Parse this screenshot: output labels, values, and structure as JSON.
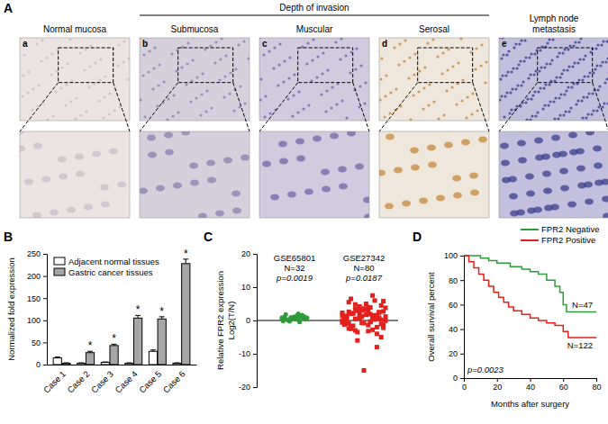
{
  "panel_labels": [
    "A",
    "B",
    "C",
    "D"
  ],
  "panel_a": {
    "group_title": "Depth of invasion",
    "panels": [
      {
        "letter": "a",
        "title": "Normal mucosa"
      },
      {
        "letter": "b",
        "title": "Submucosa"
      },
      {
        "letter": "c",
        "title": "Muscular"
      },
      {
        "letter": "d",
        "title": "Serosal"
      },
      {
        "letter": "e",
        "title": "Lymph node metastasis"
      }
    ]
  },
  "chart_data": [
    {
      "type": "bar",
      "y_label": "Normalized fold expression",
      "categories": [
        "Case 1",
        "Case 2",
        "Case 3",
        "Case 4",
        "Case 5",
        "Case 6"
      ],
      "series": [
        {
          "name": "Adjacent normal tissues",
          "color": "#ffffff",
          "values": [
            15,
            3,
            5,
            3,
            30,
            3
          ],
          "errors": [
            2,
            1,
            1,
            1,
            3,
            1
          ]
        },
        {
          "name": "Gastric cancer tissues",
          "color": "#a6a6a6",
          "values": [
            3,
            27,
            43,
            105,
            103,
            228
          ],
          "errors": [
            1,
            3,
            3,
            6,
            5,
            10
          ]
        }
      ],
      "significance": [
        null,
        "*",
        "*",
        "*",
        "*",
        "*"
      ],
      "ylim": [
        0,
        250
      ],
      "yticks": [
        0,
        50,
        100,
        150,
        200,
        250
      ],
      "legend": "upper left"
    },
    {
      "type": "scatter",
      "y_label": "Relative FPR2 expression",
      "y_sublabel": "Log2(T/N)",
      "series": [
        {
          "name": "GSE65801",
          "n_label": "N=32",
          "p_label": "p=0.0019",
          "color": "#2e9b3a",
          "marker": "circle",
          "values": [
            0.5,
            0.8,
            1.2,
            0.3,
            -0.2,
            0.6,
            1.5,
            0.9,
            0.4,
            1.1,
            0.2,
            0.7,
            1.8,
            0.5,
            -0.5,
            1.0,
            0.3,
            0.8,
            1.3,
            0.6,
            0.1,
            0.9,
            1.6,
            0.4,
            -0.3,
            0.7,
            1.2,
            0.5,
            0.2,
            1.0,
            0.6,
            2.0
          ]
        },
        {
          "name": "GSE27342",
          "n_label": "N=80",
          "p_label": "p=0.0187",
          "color": "#e3201c",
          "marker": "square",
          "values": [
            1.5,
            -2.0,
            3.2,
            0.5,
            -1.0,
            2.5,
            4.0,
            -3.5,
            1.0,
            0.2,
            -0.5,
            2.0,
            5.5,
            -1.5,
            0.8,
            3.0,
            -2.5,
            1.2,
            6.0,
            -0.8,
            2.2,
            0,
            -4.0,
            1.8,
            3.5,
            -1.2,
            0.6,
            2.8,
            -6.0,
            1.4,
            4.5,
            -0.3,
            0.9,
            2.6,
            -2.2,
            7.5,
            1.1,
            -1.8,
            3.8,
            0.4,
            -15.0,
            2.1,
            -0.6,
            1.6,
            5.0,
            -3.0,
            0.7,
            2.4,
            -1.4,
            3.3,
            0.1,
            -5.0,
            1.9,
            4.2,
            -0.9,
            2.7,
            -2.8,
            1.3,
            6.5,
            -0.1,
            0.3,
            3.6,
            -1.6,
            2.3,
            -8.0,
            1.7,
            4.8,
            -0.4,
            0.8,
            -3.2,
            2.9,
            1.0,
            -1.1,
            3.9,
            0.6,
            -2.4,
            5.8,
            1.5,
            -0.7,
            2.0
          ]
        }
      ],
      "ylim": [
        -20,
        20
      ],
      "yticks": [
        -20,
        -10,
        0,
        10,
        20
      ]
    },
    {
      "type": "line",
      "x_label": "Months after surgery",
      "y_label": "Overall survival percent",
      "annotation": "p=0.0023",
      "series": [
        {
          "name": "FPR2 Negative",
          "n_label": "N=47",
          "color": "#2e9b3a",
          "line_style": "step",
          "x": [
            0,
            10,
            15,
            20,
            28,
            35,
            40,
            45,
            50,
            55,
            58,
            60,
            62,
            80
          ],
          "values": [
            100,
            98,
            96,
            94,
            91,
            89,
            87,
            85,
            80,
            75,
            70,
            60,
            54,
            54
          ]
        },
        {
          "name": "FPR2 Positive",
          "n_label": "N=122",
          "color": "#e3201c",
          "line_style": "step",
          "x": [
            0,
            3,
            6,
            9,
            12,
            15,
            18,
            21,
            24,
            27,
            30,
            35,
            40,
            45,
            50,
            55,
            60,
            63,
            80
          ],
          "values": [
            100,
            95,
            90,
            85,
            80,
            75,
            70,
            66,
            62,
            58,
            55,
            52,
            49,
            47,
            45,
            43,
            38,
            33,
            33
          ]
        }
      ],
      "xlim": [
        0,
        80
      ],
      "xticks": [
        0,
        20,
        40,
        60,
        80
      ],
      "ylim": [
        0,
        100
      ],
      "yticks": [
        0,
        20,
        40,
        60,
        80,
        100
      ],
      "legend": "upper right"
    }
  ]
}
